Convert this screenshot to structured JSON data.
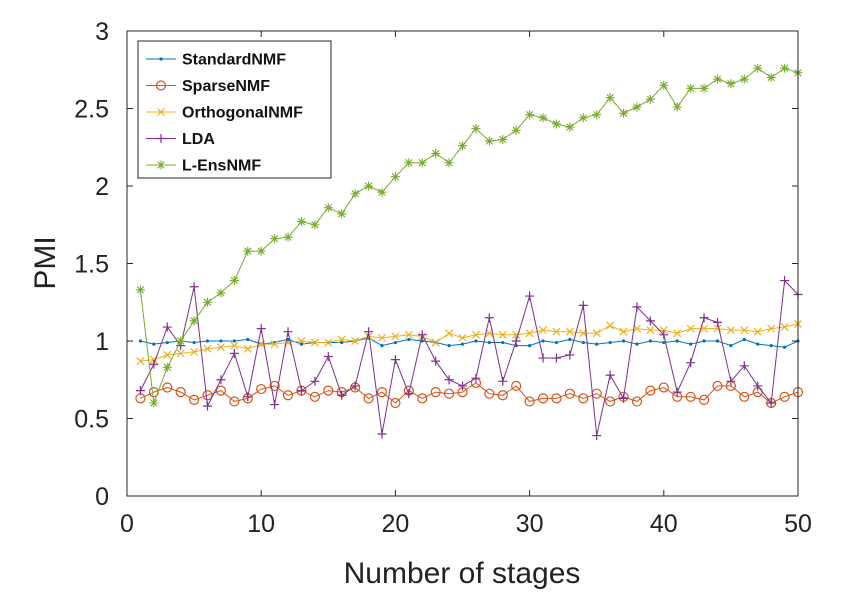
{
  "chart_data": {
    "type": "line",
    "title": "",
    "xlabel": "Number of stages",
    "ylabel": "PMI",
    "xlim": [
      0,
      50
    ],
    "ylim": [
      0,
      3
    ],
    "xticks": [
      0,
      10,
      20,
      30,
      40,
      50
    ],
    "yticks": [
      0,
      0.5,
      1,
      1.5,
      2,
      2.5,
      3
    ],
    "ytick_labels": [
      "0",
      "0.5",
      "1",
      "1.5",
      "2",
      "2.5",
      "3"
    ],
    "grid": false,
    "legend_position": "top-left",
    "x": [
      1,
      2,
      3,
      4,
      5,
      6,
      7,
      8,
      9,
      10,
      11,
      12,
      13,
      14,
      15,
      16,
      17,
      18,
      19,
      20,
      21,
      22,
      23,
      24,
      25,
      26,
      27,
      28,
      29,
      30,
      31,
      32,
      33,
      34,
      35,
      36,
      37,
      38,
      39,
      40,
      41,
      42,
      43,
      44,
      45,
      46,
      47,
      48,
      49,
      50
    ],
    "series": [
      {
        "name": "StandardNMF",
        "color": "#0072BD",
        "marker": "dot",
        "values": [
          1.0,
          0.98,
          0.99,
          1.0,
          0.99,
          1.0,
          1.0,
          1.0,
          1.01,
          0.98,
          0.99,
          1.01,
          0.98,
          0.99,
          0.99,
          0.99,
          1.0,
          1.02,
          0.97,
          0.99,
          1.01,
          1.0,
          0.99,
          0.97,
          0.98,
          1.0,
          0.99,
          0.99,
          0.97,
          0.97,
          1.0,
          0.99,
          1.01,
          0.99,
          0.98,
          0.99,
          1.0,
          0.98,
          1.0,
          0.99,
          1.0,
          0.98,
          1.0,
          1.0,
          0.97,
          1.01,
          0.98,
          0.97,
          0.96,
          1.0
        ]
      },
      {
        "name": "SparseNMF",
        "color": "#D95319",
        "marker": "circle",
        "values": [
          0.63,
          0.67,
          0.7,
          0.67,
          0.62,
          0.65,
          0.68,
          0.61,
          0.63,
          0.69,
          0.71,
          0.65,
          0.68,
          0.64,
          0.68,
          0.67,
          0.7,
          0.63,
          0.67,
          0.6,
          0.68,
          0.63,
          0.67,
          0.66,
          0.67,
          0.73,
          0.66,
          0.65,
          0.71,
          0.61,
          0.63,
          0.63,
          0.66,
          0.63,
          0.66,
          0.61,
          0.64,
          0.61,
          0.68,
          0.7,
          0.64,
          0.64,
          0.62,
          0.71,
          0.71,
          0.64,
          0.67,
          0.6,
          0.64,
          0.67
        ]
      },
      {
        "name": "OrthogonalNMF",
        "color": "#EDB120",
        "marker": "x",
        "values": [
          0.87,
          0.88,
          0.91,
          0.92,
          0.93,
          0.95,
          0.96,
          0.97,
          0.95,
          0.98,
          0.98,
          0.99,
          1.0,
          0.99,
          0.99,
          1.01,
          1.0,
          1.03,
          1.02,
          1.03,
          1.04,
          1.03,
          0.99,
          1.05,
          1.02,
          1.04,
          1.05,
          1.04,
          1.04,
          1.05,
          1.07,
          1.06,
          1.06,
          1.05,
          1.05,
          1.1,
          1.06,
          1.08,
          1.07,
          1.07,
          1.05,
          1.08,
          1.08,
          1.08,
          1.07,
          1.07,
          1.06,
          1.08,
          1.09,
          1.11
        ]
      },
      {
        "name": "LDA",
        "color": "#7E2F8E",
        "marker": "plus",
        "values": [
          0.68,
          0.85,
          1.09,
          0.97,
          1.35,
          0.58,
          0.75,
          0.92,
          0.64,
          1.08,
          0.59,
          1.06,
          0.68,
          0.74,
          0.9,
          0.65,
          0.71,
          1.06,
          0.4,
          0.88,
          0.66,
          1.04,
          0.87,
          0.75,
          0.71,
          0.76,
          1.15,
          0.74,
          1.0,
          1.29,
          0.89,
          0.89,
          0.91,
          1.23,
          0.39,
          0.78,
          0.63,
          1.22,
          1.13,
          1.04,
          0.67,
          0.86,
          1.15,
          1.12,
          0.74,
          0.84,
          0.71,
          0.6,
          1.39,
          1.3
        ]
      },
      {
        "name": "L-EnsNMF",
        "color": "#77AC30",
        "marker": "star",
        "values": [
          1.33,
          0.6,
          0.83,
          1.0,
          1.13,
          1.25,
          1.31,
          1.39,
          1.58,
          1.58,
          1.66,
          1.67,
          1.77,
          1.75,
          1.86,
          1.82,
          1.95,
          2.0,
          1.96,
          2.06,
          2.15,
          2.15,
          2.21,
          2.15,
          2.26,
          2.37,
          2.29,
          2.3,
          2.36,
          2.46,
          2.44,
          2.4,
          2.38,
          2.44,
          2.46,
          2.57,
          2.47,
          2.51,
          2.56,
          2.65,
          2.51,
          2.63,
          2.63,
          2.69,
          2.66,
          2.69,
          2.76,
          2.7,
          2.76,
          2.73
        ]
      }
    ]
  }
}
